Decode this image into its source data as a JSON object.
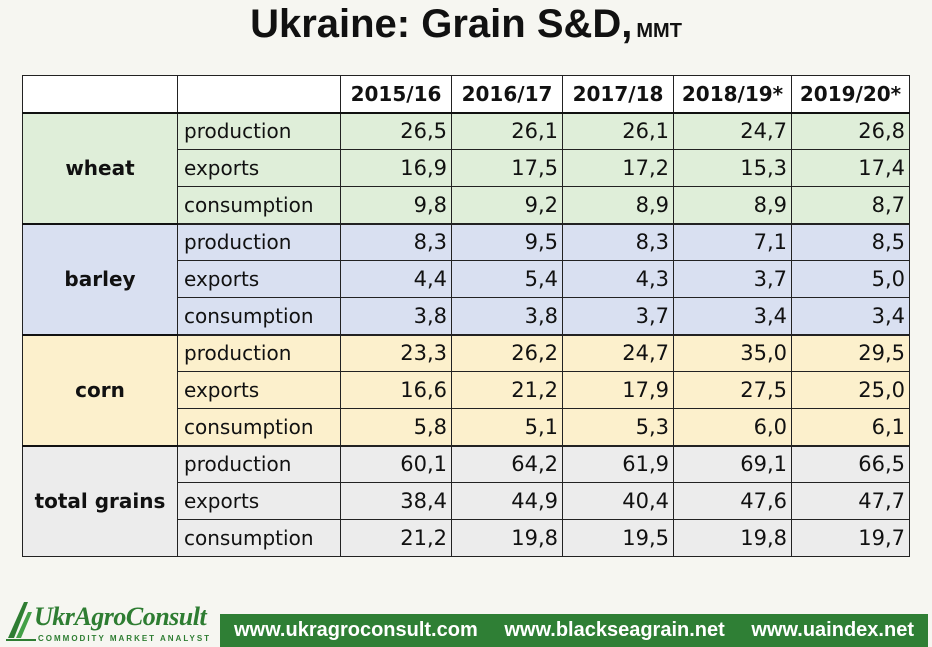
{
  "title": {
    "main": "Ukraine: Grain S&D,",
    "unit": "MMT"
  },
  "table": {
    "years": [
      "2015/16",
      "2016/17",
      "2017/18",
      "2018/19*",
      "2019/20*"
    ],
    "groups": [
      {
        "name": "wheat",
        "rows": [
          {
            "metric": "production",
            "values": [
              "26,5",
              "26,1",
              "26,1",
              "24,7",
              "26,8"
            ]
          },
          {
            "metric": "exports",
            "values": [
              "16,9",
              "17,5",
              "17,2",
              "15,3",
              "17,4"
            ]
          },
          {
            "metric": "consumption",
            "values": [
              "9,8",
              "9,2",
              "8,9",
              "8,9",
              "8,7"
            ]
          }
        ]
      },
      {
        "name": "barley",
        "rows": [
          {
            "metric": "production",
            "values": [
              "8,3",
              "9,5",
              "8,3",
              "7,1",
              "8,5"
            ]
          },
          {
            "metric": "exports",
            "values": [
              "4,4",
              "5,4",
              "4,3",
              "3,7",
              "5,0"
            ]
          },
          {
            "metric": "consumption",
            "values": [
              "3,8",
              "3,8",
              "3,7",
              "3,4",
              "3,4"
            ]
          }
        ]
      },
      {
        "name": "corn",
        "rows": [
          {
            "metric": "production",
            "values": [
              "23,3",
              "26,2",
              "24,7",
              "35,0",
              "29,5"
            ]
          },
          {
            "metric": "exports",
            "values": [
              "16,6",
              "21,2",
              "17,9",
              "27,5",
              "25,0"
            ]
          },
          {
            "metric": "consumption",
            "values": [
              "5,8",
              "5,1",
              "5,3",
              "6,0",
              "6,1"
            ]
          }
        ]
      },
      {
        "name": "total grains",
        "rows": [
          {
            "metric": "production",
            "values": [
              "60,1",
              "64,2",
              "61,9",
              "69,1",
              "66,5"
            ]
          },
          {
            "metric": "exports",
            "values": [
              "38,4",
              "44,9",
              "40,4",
              "47,6",
              "47,7"
            ]
          },
          {
            "metric": "consumption",
            "values": [
              "21,2",
              "19,8",
              "19,5",
              "19,8",
              "19,7"
            ]
          }
        ]
      }
    ]
  },
  "footer": {
    "logo_name": "UkrAgroConsult",
    "logo_tagline": "COMMODITY MARKET ANALYST",
    "links": [
      "www.ukragroconsult.com",
      "www.blackseagrain.net",
      "www.uaindex.net"
    ]
  },
  "colors": {
    "wheat": "#dfeed9",
    "barley": "#d9e0f1",
    "corn": "#fcf0cc",
    "total": "#ececec",
    "brand_green": "#2f7f35"
  }
}
